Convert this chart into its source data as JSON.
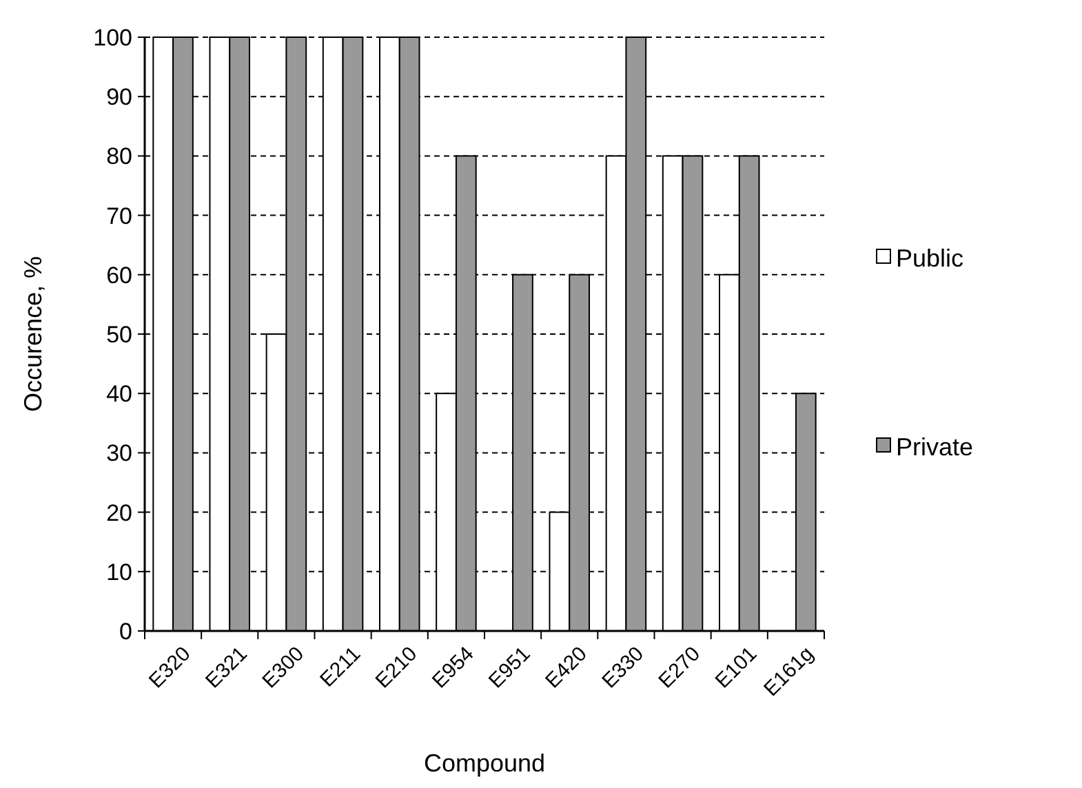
{
  "chart_data": {
    "type": "bar",
    "xlabel": "Compound",
    "ylabel": "Occurence, %",
    "categories": [
      "E320",
      "E321",
      "E300",
      "E211",
      "E210",
      "E954",
      "E951",
      "E420",
      "E330",
      "E270",
      "E101",
      "E161g"
    ],
    "series": [
      {
        "name": "Public",
        "color": "#ffffff",
        "values": [
          100,
          100,
          50,
          100,
          100,
          40,
          0,
          20,
          80,
          80,
          60,
          0
        ]
      },
      {
        "name": "Private",
        "color": "#999999",
        "values": [
          100,
          100,
          100,
          100,
          100,
          80,
          60,
          60,
          100,
          80,
          80,
          40
        ]
      }
    ],
    "ylim": [
      0,
      100
    ],
    "yticks": [
      0,
      10,
      20,
      30,
      40,
      50,
      60,
      70,
      80,
      90,
      100
    ],
    "grid": "y",
    "line_style": "dashed",
    "legend": "right"
  }
}
